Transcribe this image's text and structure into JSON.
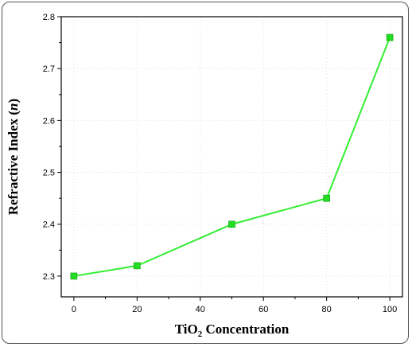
{
  "chart_data": {
    "type": "line",
    "title": "",
    "xlabel_main": "TiO",
    "xlabel_sub": "2",
    "xlabel_rest": " Concentration",
    "ylabel_main": "Refractive Index (",
    "ylabel_italic": "n",
    "ylabel_end": ")",
    "x": [
      0,
      20,
      50,
      80,
      100
    ],
    "series": [
      {
        "name": "",
        "values": [
          2.3,
          2.32,
          2.4,
          2.45,
          2.76
        ]
      }
    ],
    "xlim": [
      -4,
      104
    ],
    "ylim": [
      2.26,
      2.8
    ],
    "xticks": [
      0,
      20,
      40,
      60,
      80,
      100
    ],
    "yticks": [
      2.3,
      2.4,
      2.5,
      2.6,
      2.7,
      2.8
    ],
    "grid": true,
    "colors": {
      "line": "#33ee33",
      "marker": "#22dd22",
      "grid": "#d8d8d8"
    }
  }
}
